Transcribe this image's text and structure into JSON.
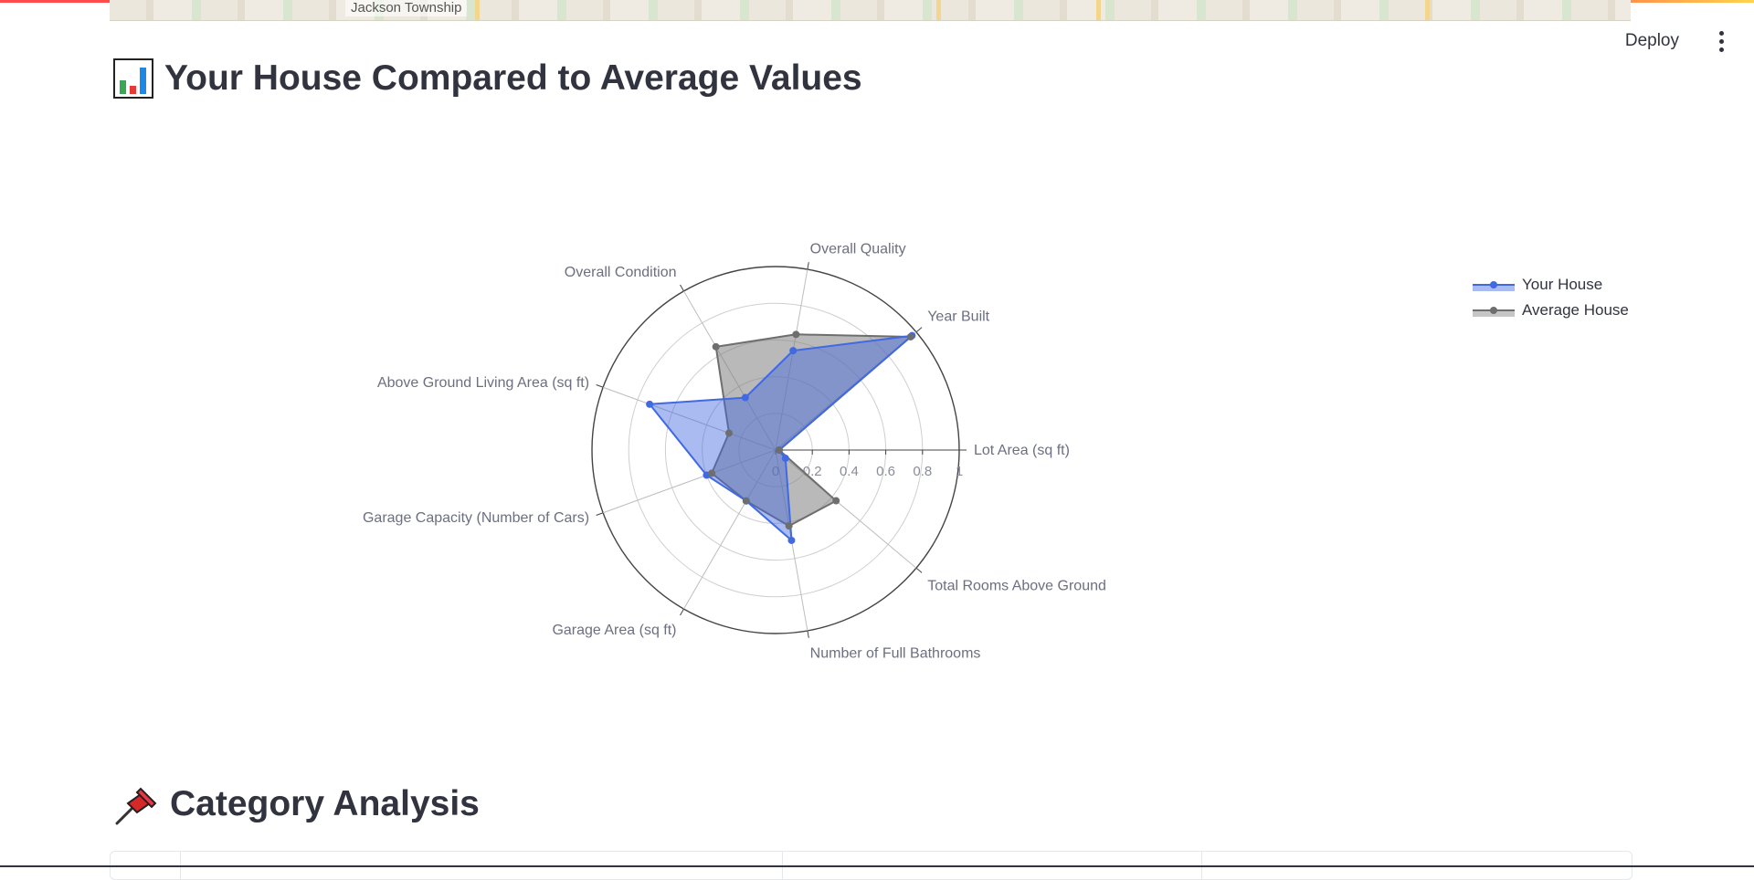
{
  "map": {
    "place_label": "Jackson Township"
  },
  "header": {
    "deploy_label": "Deploy",
    "menu_icon": "vertical-ellipsis-icon"
  },
  "sections": {
    "main_title": "Your House Compared to Average Values",
    "main_icon": "bar-chart-emoji-icon",
    "category_title": "Category Analysis",
    "category_icon": "pushpin-emoji-icon"
  },
  "colors": {
    "your_house": "#4169e1",
    "average_house": "#808080",
    "text": "#31333f"
  },
  "chart_data": {
    "type": "radar",
    "categories": [
      "Lot Area (sq ft)",
      "Year Built",
      "Overall Quality",
      "Overall Condition",
      "Above Ground Living Area (sq ft)",
      "Garage Capacity (Number of Cars)",
      "Garage Area (sq ft)",
      "Number of Full Bathrooms",
      "Total Rooms Above Ground"
    ],
    "radial_range": [
      0,
      1
    ],
    "radial_ticks": [
      "0",
      "0.2",
      "0.4",
      "0.6",
      "0.8",
      "1"
    ],
    "legend_position": "top-right",
    "series": [
      {
        "name": "Your House",
        "values": [
          0.02,
          0.97,
          0.55,
          0.33,
          0.73,
          0.4,
          0.32,
          0.5,
          0.07
        ]
      },
      {
        "name": "Average House",
        "values": [
          0.02,
          0.96,
          0.64,
          0.65,
          0.27,
          0.37,
          0.32,
          0.42,
          0.43
        ]
      }
    ]
  }
}
